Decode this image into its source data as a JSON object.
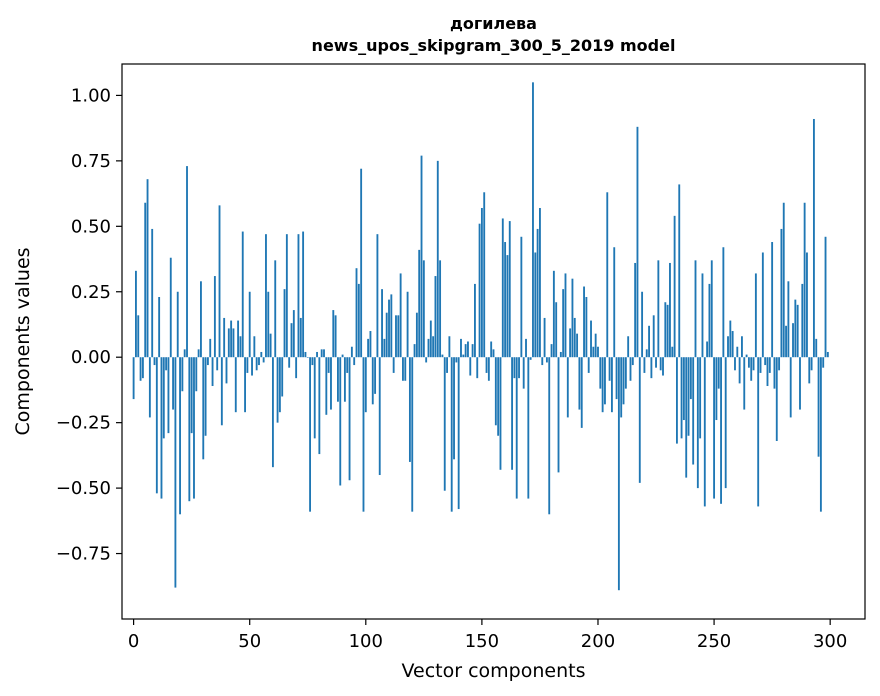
{
  "chart_data": {
    "type": "bar",
    "title": "догилева",
    "subtitle": "news_upos_skipgram_300_5_2019 model",
    "xlabel": "Vector components",
    "ylabel": "Components values",
    "xlim": [
      -5,
      315
    ],
    "ylim": [
      -1.0,
      1.12
    ],
    "x_ticks": [
      0,
      50,
      100,
      150,
      200,
      250,
      300
    ],
    "x_tick_labels": [
      "0",
      "50",
      "100",
      "150",
      "200",
      "250",
      "300"
    ],
    "y_ticks": [
      1.0,
      0.75,
      0.5,
      0.25,
      0.0,
      -0.25,
      -0.5,
      -0.75
    ],
    "y_tick_labels": [
      "1.00",
      "0.75",
      "0.50",
      "0.25",
      "0.00",
      "−0.25",
      "−0.50",
      "−0.75"
    ],
    "bar_color": "#1f77b4",
    "grid": false,
    "x": "0..299 (component index)",
    "values": [
      -0.16,
      0.33,
      0.16,
      -0.09,
      -0.08,
      0.59,
      0.68,
      -0.23,
      0.49,
      -0.03,
      -0.52,
      0.23,
      -0.54,
      -0.31,
      -0.05,
      -0.29,
      0.38,
      -0.2,
      -0.88,
      0.25,
      -0.6,
      -0.13,
      0.03,
      0.73,
      -0.55,
      -0.29,
      -0.54,
      -0.13,
      0.03,
      0.29,
      -0.39,
      -0.3,
      -0.03,
      0.07,
      -0.11,
      0.31,
      -0.05,
      0.58,
      -0.26,
      0.15,
      -0.1,
      0.11,
      0.14,
      0.11,
      -0.21,
      0.14,
      0.08,
      0.48,
      -0.21,
      -0.06,
      0.25,
      -0.07,
      0.08,
      -0.05,
      -0.03,
      0.02,
      -0.02,
      0.47,
      0.25,
      0.09,
      -0.42,
      0.37,
      -0.25,
      -0.21,
      -0.15,
      0.26,
      0.47,
      -0.04,
      0.13,
      0.18,
      -0.08,
      0.47,
      0.15,
      0.48,
      0.02,
      0.0,
      -0.59,
      -0.03,
      -0.31,
      0.02,
      -0.37,
      0.03,
      0.03,
      -0.22,
      -0.06,
      -0.2,
      0.18,
      0.16,
      -0.17,
      -0.49,
      0.01,
      -0.17,
      -0.06,
      -0.47,
      0.04,
      -0.03,
      0.34,
      0.28,
      0.72,
      -0.59,
      -0.21,
      0.07,
      0.1,
      -0.18,
      -0.14,
      0.47,
      -0.45,
      0.26,
      0.07,
      0.17,
      0.22,
      0.24,
      -0.06,
      0.16,
      0.16,
      0.32,
      -0.09,
      -0.09,
      0.25,
      -0.4,
      -0.59,
      0.05,
      0.17,
      0.41,
      0.77,
      0.37,
      -0.02,
      0.07,
      0.14,
      0.08,
      0.31,
      0.75,
      0.37,
      0.01,
      -0.51,
      -0.06,
      0.08,
      -0.59,
      -0.39,
      -0.02,
      -0.58,
      0.07,
      0.01,
      0.05,
      0.06,
      -0.07,
      0.05,
      0.28,
      -0.08,
      0.51,
      0.57,
      0.63,
      -0.06,
      -0.09,
      0.06,
      0.03,
      -0.26,
      -0.3,
      -0.43,
      0.53,
      0.44,
      0.39,
      0.52,
      -0.43,
      -0.08,
      -0.54,
      -0.08,
      0.46,
      -0.12,
      0.07,
      -0.54,
      -0.01,
      1.05,
      0.4,
      0.49,
      0.57,
      -0.03,
      0.15,
      -0.02,
      -0.6,
      0.05,
      0.33,
      0.21,
      -0.44,
      0.02,
      0.26,
      0.32,
      -0.23,
      0.11,
      0.3,
      0.15,
      0.09,
      -0.2,
      -0.27,
      0.27,
      0.23,
      -0.06,
      0.14,
      0.04,
      0.09,
      0.04,
      -0.12,
      -0.21,
      -0.18,
      0.63,
      -0.09,
      -0.21,
      0.42,
      -0.16,
      -0.89,
      -0.23,
      -0.18,
      -0.12,
      0.08,
      -0.09,
      -0.03,
      0.36,
      0.88,
      -0.48,
      0.25,
      -0.06,
      0.03,
      0.12,
      -0.08,
      0.16,
      -0.04,
      0.37,
      -0.05,
      -0.07,
      0.21,
      0.2,
      0.36,
      0.04,
      0.54,
      -0.33,
      0.66,
      -0.31,
      -0.24,
      -0.46,
      -0.3,
      -0.16,
      -0.41,
      0.37,
      -0.5,
      -0.31,
      0.32,
      -0.57,
      0.06,
      0.28,
      0.37,
      -0.54,
      -0.24,
      -0.12,
      -0.56,
      0.42,
      -0.5,
      0.08,
      0.14,
      0.1,
      -0.05,
      0.04,
      -0.1,
      0.08,
      -0.2,
      0.01,
      -0.04,
      -0.09,
      -0.05,
      0.32,
      -0.57,
      -0.06,
      0.4,
      -0.03,
      -0.11,
      -0.06,
      0.44,
      -0.12,
      -0.32,
      -0.05,
      0.49,
      0.59,
      0.12,
      0.29,
      -0.23,
      0.13,
      0.22,
      0.2,
      -0.2,
      0.28,
      0.59,
      0.4,
      -0.1,
      -0.05,
      0.91,
      0.07,
      -0.38,
      -0.59,
      -0.04,
      0.46,
      0.02
    ]
  }
}
